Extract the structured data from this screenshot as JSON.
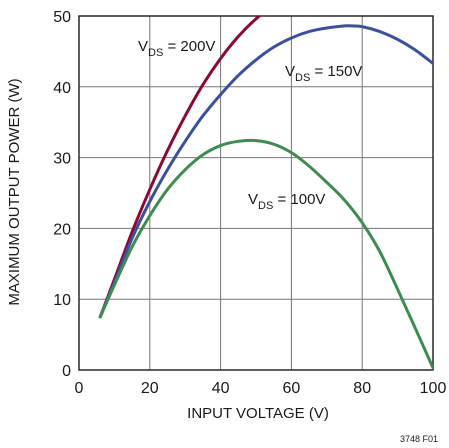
{
  "chart_data": {
    "type": "line",
    "xlabel": "INPUT VOLTAGE (V)",
    "ylabel": "MAXIMUM OUTPUT POWER (W)",
    "figure_id": "3748 F01",
    "xlim": [
      0,
      100
    ],
    "ylim": [
      0,
      50
    ],
    "x_ticks": [
      "0",
      "20",
      "40",
      "60",
      "80",
      "100"
    ],
    "y_ticks": [
      "0",
      "10",
      "20",
      "30",
      "40",
      "50"
    ],
    "grid": true,
    "series": [
      {
        "name_main": "V",
        "name_sub": "DS",
        "name_rest": " = 200V",
        "color": "#8b0a32",
        "x": [
          6,
          10,
          15,
          20,
          25,
          30,
          35,
          40,
          45,
          50,
          55,
          57.5
        ],
        "y": [
          7.5,
          12.8,
          19.5,
          25.5,
          31.0,
          35.9,
          40.3,
          44.0,
          47.1,
          49.6,
          51.5,
          52.0
        ]
      },
      {
        "name_main": "V",
        "name_sub": "DS",
        "name_rest": " = 150V",
        "color": "#3c50a0",
        "x": [
          6,
          10,
          15,
          20,
          25,
          30,
          35,
          40,
          45,
          50,
          55,
          60,
          65,
          70,
          75,
          77,
          80,
          85,
          90,
          95,
          100
        ],
        "y": [
          7.5,
          12.4,
          18.6,
          23.8,
          28.3,
          32.3,
          35.9,
          38.9,
          41.6,
          43.8,
          45.6,
          46.9,
          47.8,
          48.3,
          48.6,
          48.6,
          48.5,
          47.8,
          46.7,
          45.2,
          43.3
        ]
      },
      {
        "name_main": "V",
        "name_sub": "DS",
        "name_rest": " = 100V",
        "color": "#3f8c50",
        "x": [
          6,
          10,
          15,
          20,
          25,
          30,
          35,
          40,
          45,
          50,
          55,
          60,
          65,
          70,
          75,
          80,
          85,
          90,
          95,
          100
        ],
        "y": [
          7.5,
          12.0,
          17.4,
          21.8,
          25.5,
          28.3,
          30.4,
          31.7,
          32.3,
          32.4,
          31.9,
          30.7,
          28.8,
          26.5,
          24.0,
          20.8,
          16.7,
          11.4,
          5.9,
          0.3
        ]
      }
    ]
  }
}
